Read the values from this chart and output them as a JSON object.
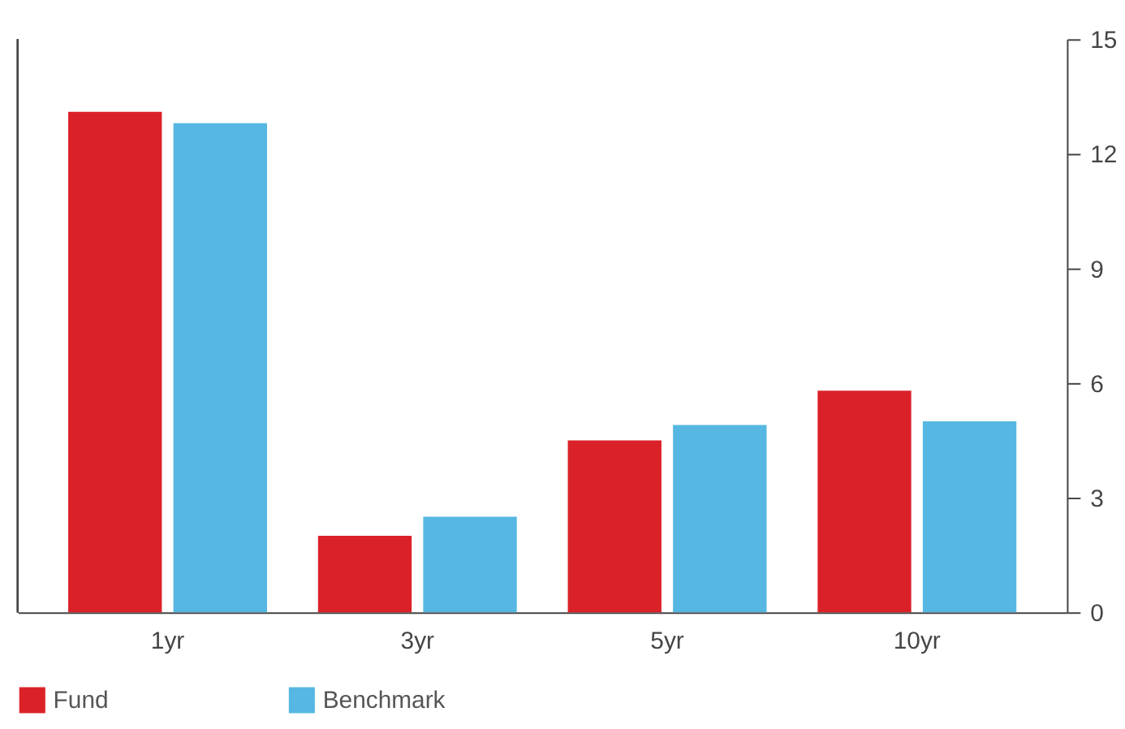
{
  "chart_data": {
    "type": "bar",
    "categories": [
      "1yr",
      "3yr",
      "5yr",
      "10yr"
    ],
    "series": [
      {
        "name": "Fund",
        "color": "#db2128",
        "values": [
          13.1,
          2.0,
          4.5,
          5.8
        ]
      },
      {
        "name": "Benchmark",
        "color": "#56b7e2",
        "values": [
          12.8,
          2.5,
          4.9,
          5.0
        ]
      }
    ],
    "ylim": [
      0,
      15
    ],
    "yticks": [
      0,
      3,
      6,
      9,
      12,
      15
    ],
    "grid": false,
    "legend": "bottom left"
  }
}
